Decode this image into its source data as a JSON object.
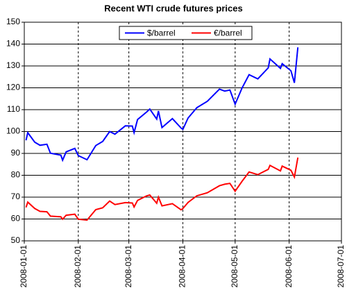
{
  "chart_data": {
    "type": "line",
    "title": "Recent WTI crude futures prices",
    "x": [
      "2008-01-02",
      "2008-01-03",
      "2008-01-07",
      "2008-01-10",
      "2008-01-14",
      "2008-01-16",
      "2008-01-22",
      "2008-01-23",
      "2008-01-25",
      "2008-01-30",
      "2008-02-01",
      "2008-02-06",
      "2008-02-11",
      "2008-02-15",
      "2008-02-19",
      "2008-02-22",
      "2008-02-28",
      "2008-03-03",
      "2008-03-04",
      "2008-03-06",
      "2008-03-11",
      "2008-03-13",
      "2008-03-17",
      "2008-03-18",
      "2008-03-20",
      "2008-03-26",
      "2008-03-31",
      "2008-04-01",
      "2008-04-04",
      "2008-04-09",
      "2008-04-15",
      "2008-04-22",
      "2008-04-25",
      "2008-04-28",
      "2008-05-01",
      "2008-05-05",
      "2008-05-09",
      "2008-05-14",
      "2008-05-20",
      "2008-05-21",
      "2008-05-27",
      "2008-05-28",
      "2008-06-02",
      "2008-06-04",
      "2008-06-06"
    ],
    "series": [
      {
        "name": "$/barrel",
        "color": "#0000ff",
        "values": [
          96.0,
          99.5,
          95.1,
          93.7,
          94.2,
          90.1,
          89.2,
          86.9,
          90.7,
          92.3,
          89.0,
          87.1,
          93.6,
          95.5,
          100.0,
          98.8,
          102.6,
          102.5,
          99.5,
          105.5,
          108.8,
          110.3,
          105.7,
          109.4,
          101.8,
          105.9,
          101.6,
          101.0,
          106.2,
          110.9,
          113.8,
          119.4,
          118.5,
          119.0,
          112.5,
          120.0,
          126.0,
          124.1,
          129.1,
          133.2,
          128.9,
          131.0,
          127.8,
          122.3,
          138.5
        ]
      },
      {
        "name": "€/barrel",
        "color": "#ff0000",
        "values": [
          65.3,
          67.7,
          64.8,
          63.5,
          63.3,
          61.3,
          61.0,
          59.9,
          61.7,
          62.2,
          59.9,
          59.5,
          64.3,
          65.1,
          68.2,
          66.6,
          67.5,
          67.3,
          65.5,
          68.5,
          70.5,
          71.0,
          67.2,
          70.0,
          66.0,
          67.0,
          64.2,
          64.8,
          67.6,
          70.6,
          72.0,
          75.2,
          75.9,
          76.3,
          72.7,
          77.3,
          81.5,
          80.3,
          82.7,
          84.5,
          82.0,
          84.2,
          82.3,
          79.2,
          88.1
        ]
      }
    ],
    "xlim": [
      "2008-01-01",
      "2008-07-01"
    ],
    "xticks": [
      "2008-01-01",
      "2008-02-01",
      "2008-03-01",
      "2008-04-01",
      "2008-05-01",
      "2008-06-01",
      "2008-07-01"
    ],
    "ylim": [
      50,
      150
    ],
    "yticks": [
      50,
      60,
      70,
      80,
      90,
      100,
      110,
      120,
      130,
      140,
      150
    ],
    "grid": true,
    "legend": "top"
  }
}
